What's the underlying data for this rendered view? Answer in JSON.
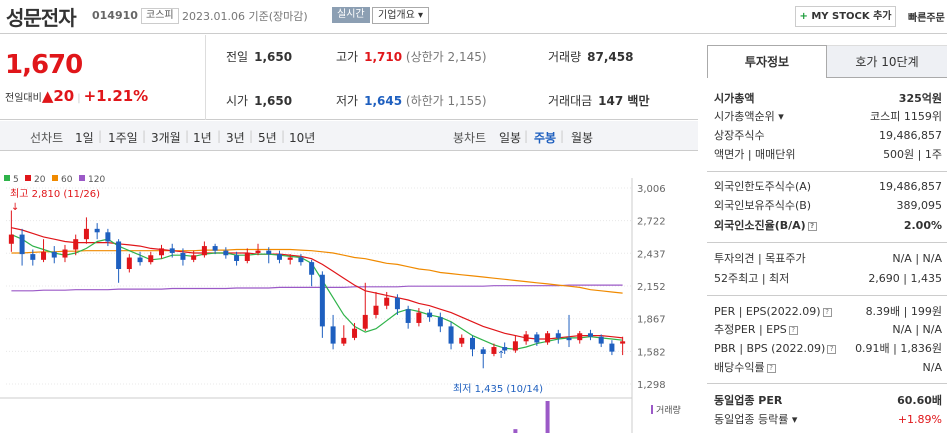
{
  "header": {
    "name": "성문전자",
    "code": "014910",
    "market": "코스피",
    "date": "2023.01.06 기준(장마감)",
    "live": "실시간",
    "corp_info": "기업개요",
    "mystock": "MY STOCK 추가",
    "quick": "빠른주문"
  },
  "summary": {
    "price": "1,670",
    "change_label": "전일대비",
    "change": "20",
    "change_pct": "+1.21%",
    "prev_label": "전일",
    "prev": "1,650",
    "open_label": "시가",
    "open": "1,650",
    "high_label": "고가",
    "high": "1,710",
    "upper": "(상한가 2,145)",
    "low_label": "저가",
    "low": "1,645",
    "lower": "(하한가 1,155)",
    "vol_label": "거래량",
    "vol": "87,458",
    "amt_label": "거래대금",
    "amt": "147 백만"
  },
  "periods": {
    "line_label": "선차트",
    "items": [
      "1일",
      "1주일",
      "3개월",
      "1년",
      "3년",
      "5년",
      "10년"
    ],
    "candle_label": "봉차트",
    "candles": [
      "일봉",
      "주봉",
      "월봉"
    ],
    "selected": "주봉"
  },
  "chart_data": {
    "type": "candlestick",
    "legend": [
      {
        "name": "5",
        "color": "#2fb34a"
      },
      {
        "name": "20",
        "color": "#e0161a"
      },
      {
        "name": "60",
        "color": "#f08a00"
      },
      {
        "name": "120",
        "color": "#9b59c7"
      }
    ],
    "y_ticks": [
      "3,006",
      "2,722",
      "2,437",
      "2,152",
      "1,867",
      "1,582",
      "1,298"
    ],
    "ylim": [
      1298,
      3006
    ],
    "high_note": "최고 2,810 (11/26)",
    "low_note": "최저 1,435 (10/14)",
    "volume_label": "거래량",
    "candles": [
      {
        "o": 2520,
        "c": 2600,
        "h": 2810,
        "l": 2450
      },
      {
        "o": 2600,
        "c": 2430,
        "h": 2650,
        "l": 2330
      },
      {
        "o": 2430,
        "c": 2380,
        "h": 2470,
        "l": 2330
      },
      {
        "o": 2380,
        "c": 2450,
        "h": 2560,
        "l": 2360
      },
      {
        "o": 2450,
        "c": 2400,
        "h": 2500,
        "l": 2350
      },
      {
        "o": 2400,
        "c": 2470,
        "h": 2510,
        "l": 2360
      },
      {
        "o": 2470,
        "c": 2560,
        "h": 2600,
        "l": 2420
      },
      {
        "o": 2560,
        "c": 2650,
        "h": 2750,
        "l": 2520
      },
      {
        "o": 2650,
        "c": 2620,
        "h": 2700,
        "l": 2560
      },
      {
        "o": 2620,
        "c": 2540,
        "h": 2650,
        "l": 2500
      },
      {
        "o": 2540,
        "c": 2300,
        "h": 2560,
        "l": 2180
      },
      {
        "o": 2300,
        "c": 2400,
        "h": 2430,
        "l": 2270
      },
      {
        "o": 2400,
        "c": 2360,
        "h": 2450,
        "l": 2330
      },
      {
        "o": 2360,
        "c": 2420,
        "h": 2450,
        "l": 2340
      },
      {
        "o": 2420,
        "c": 2480,
        "h": 2510,
        "l": 2390
      },
      {
        "o": 2480,
        "c": 2440,
        "h": 2520,
        "l": 2400
      },
      {
        "o": 2440,
        "c": 2380,
        "h": 2480,
        "l": 2330
      },
      {
        "o": 2380,
        "c": 2420,
        "h": 2460,
        "l": 2360
      },
      {
        "o": 2420,
        "c": 2500,
        "h": 2540,
        "l": 2400
      },
      {
        "o": 2500,
        "c": 2460,
        "h": 2520,
        "l": 2430
      },
      {
        "o": 2460,
        "c": 2420,
        "h": 2490,
        "l": 2390
      },
      {
        "o": 2420,
        "c": 2370,
        "h": 2450,
        "l": 2330
      },
      {
        "o": 2370,
        "c": 2440,
        "h": 2480,
        "l": 2350
      },
      {
        "o": 2440,
        "c": 2460,
        "h": 2520,
        "l": 2420
      },
      {
        "o": 2460,
        "c": 2430,
        "h": 2490,
        "l": 2350
      },
      {
        "o": 2430,
        "c": 2380,
        "h": 2460,
        "l": 2350
      },
      {
        "o": 2380,
        "c": 2400,
        "h": 2430,
        "l": 2340
      },
      {
        "o": 2400,
        "c": 2360,
        "h": 2430,
        "l": 2330
      },
      {
        "o": 2360,
        "c": 2250,
        "h": 2380,
        "l": 2150
      },
      {
        "o": 2250,
        "c": 1800,
        "h": 2280,
        "l": 1700
      },
      {
        "o": 1800,
        "c": 1650,
        "h": 1900,
        "l": 1600
      },
      {
        "o": 1650,
        "c": 1700,
        "h": 1810,
        "l": 1630
      },
      {
        "o": 1700,
        "c": 1780,
        "h": 1830,
        "l": 1680
      },
      {
        "o": 1780,
        "c": 1900,
        "h": 2180,
        "l": 1760
      },
      {
        "o": 1900,
        "c": 1980,
        "h": 2100,
        "l": 1870
      },
      {
        "o": 1980,
        "c": 2050,
        "h": 2100,
        "l": 1950
      },
      {
        "o": 2050,
        "c": 1950,
        "h": 2080,
        "l": 1900
      },
      {
        "o": 1950,
        "c": 1830,
        "h": 1980,
        "l": 1780
      },
      {
        "o": 1830,
        "c": 1920,
        "h": 1960,
        "l": 1800
      },
      {
        "o": 1920,
        "c": 1880,
        "h": 1950,
        "l": 1840
      },
      {
        "o": 1880,
        "c": 1800,
        "h": 1920,
        "l": 1750
      },
      {
        "o": 1800,
        "c": 1650,
        "h": 1840,
        "l": 1600
      },
      {
        "o": 1650,
        "c": 1700,
        "h": 1730,
        "l": 1620
      },
      {
        "o": 1700,
        "c": 1600,
        "h": 1720,
        "l": 1540
      },
      {
        "o": 1600,
        "c": 1560,
        "h": 1620,
        "l": 1435
      },
      {
        "o": 1560,
        "c": 1620,
        "h": 1650,
        "l": 1540
      },
      {
        "o": 1620,
        "c": 1590,
        "h": 1660,
        "l": 1560
      },
      {
        "o": 1590,
        "c": 1670,
        "h": 1720,
        "l": 1570
      },
      {
        "o": 1670,
        "c": 1730,
        "h": 1760,
        "l": 1640
      },
      {
        "o": 1730,
        "c": 1660,
        "h": 1750,
        "l": 1630
      },
      {
        "o": 1660,
        "c": 1740,
        "h": 1760,
        "l": 1640
      },
      {
        "o": 1740,
        "c": 1700,
        "h": 1770,
        "l": 1650
      },
      {
        "o": 1700,
        "c": 1680,
        "h": 1900,
        "l": 1620
      },
      {
        "o": 1680,
        "c": 1740,
        "h": 1760,
        "l": 1650
      },
      {
        "o": 1740,
        "c": 1710,
        "h": 1770,
        "l": 1680
      },
      {
        "o": 1710,
        "c": 1650,
        "h": 1730,
        "l": 1620
      },
      {
        "o": 1650,
        "c": 1580,
        "h": 1680,
        "l": 1550
      },
      {
        "o": 1650,
        "c": 1670,
        "h": 1710,
        "l": 1550
      }
    ],
    "ma5": [
      2600,
      2560,
      2500,
      2470,
      2440,
      2420,
      2440,
      2480,
      2540,
      2560,
      2500,
      2460,
      2420,
      2380,
      2390,
      2420,
      2420,
      2410,
      2430,
      2440,
      2440,
      2420,
      2420,
      2430,
      2430,
      2420,
      2410,
      2400,
      2350,
      2200,
      2050,
      1900,
      1800,
      1750,
      1780,
      1850,
      1920,
      1950,
      1930,
      1900,
      1880,
      1840,
      1780,
      1720,
      1680,
      1640,
      1610,
      1600,
      1620,
      1650,
      1670,
      1690,
      1700,
      1700,
      1710,
      1700,
      1690,
      1680
    ],
    "ma20": [
      2660,
      2640,
      2610,
      2580,
      2560,
      2540,
      2530,
      2530,
      2530,
      2530,
      2520,
      2510,
      2500,
      2480,
      2470,
      2460,
      2450,
      2440,
      2440,
      2440,
      2440,
      2440,
      2440,
      2430,
      2430,
      2430,
      2420,
      2410,
      2390,
      2340,
      2280,
      2220,
      2160,
      2110,
      2090,
      2070,
      2050,
      2030,
      2000,
      1980,
      1950,
      1920,
      1880,
      1840,
      1800,
      1770,
      1740,
      1720,
      1700,
      1690,
      1690,
      1700,
      1710,
      1720,
      1720,
      1720,
      1710,
      1700
    ],
    "ma60": [
      2440,
      2440,
      2445,
      2450,
      2450,
      2455,
      2455,
      2460,
      2460,
      2460,
      2460,
      2460,
      2460,
      2460,
      2460,
      2460,
      2460,
      2460,
      2465,
      2465,
      2465,
      2470,
      2470,
      2470,
      2470,
      2470,
      2470,
      2465,
      2460,
      2450,
      2440,
      2420,
      2400,
      2390,
      2370,
      2350,
      2340,
      2320,
      2300,
      2290,
      2270,
      2260,
      2250,
      2240,
      2230,
      2220,
      2210,
      2200,
      2190,
      2180,
      2170,
      2160,
      2150,
      2140,
      2120,
      2110,
      2100,
      2090
    ],
    "ma120": [
      2110,
      2110,
      2110,
      2115,
      2115,
      2115,
      2120,
      2120,
      2120,
      2120,
      2125,
      2125,
      2125,
      2125,
      2125,
      2130,
      2130,
      2130,
      2130,
      2130,
      2130,
      2135,
      2135,
      2135,
      2135,
      2140,
      2140,
      2140,
      2140,
      2140,
      2140,
      2140,
      2145,
      2145,
      2145,
      2145,
      2145,
      2150,
      2150,
      2150,
      2150,
      2150,
      2150,
      2150,
      2150,
      2155,
      2155,
      2155,
      2155,
      2155,
      2155,
      2155,
      2160,
      2160,
      2160,
      2160,
      2160,
      2160
    ],
    "volume_bars": [
      {
        "index": 47,
        "value": 0.12
      },
      {
        "index": 50,
        "value": 1.0
      }
    ]
  },
  "info": {
    "tab_active": "투자정보",
    "tab_other": "호가 10단계",
    "market_cap_label": "시가총액",
    "market_cap": "325억원",
    "rank_label": "시가총액순위",
    "rank": "코스피 1159위",
    "shares_label": "상장주식수",
    "shares": "19,486,857",
    "par_label": "액면가 | 매매단위",
    "par": "500원 | 1주",
    "foreign_limit_label": "외국인한도주식수(A)",
    "foreign_limit": "19,486,857",
    "foreign_hold_label": "외국인보유주식수(B)",
    "foreign_hold": "389,095",
    "foreign_rate_label": "외국인소진율(B/A)",
    "foreign_rate": "2.00%",
    "opinion_label": "투자의견 | 목표주가",
    "opinion": "N/A | N/A",
    "w52_label": "52주최고 | 최저",
    "w52": "2,690 | 1,435",
    "per_label": "PER | EPS(2022.09)",
    "per": "8.39배 | 199원",
    "est_per_label": "추정PER | EPS",
    "est_per": "N/A | N/A",
    "pbr_label": "PBR | BPS (2022.09)",
    "pbr": "0.91배 | 1,836원",
    "div_label": "배당수익률",
    "div": "N/A",
    "ind_per_label": "동일업종 PER",
    "ind_per": "60.60배",
    "ind_rate_label": "동일업종 등락률",
    "ind_rate": "+1.89%"
  }
}
